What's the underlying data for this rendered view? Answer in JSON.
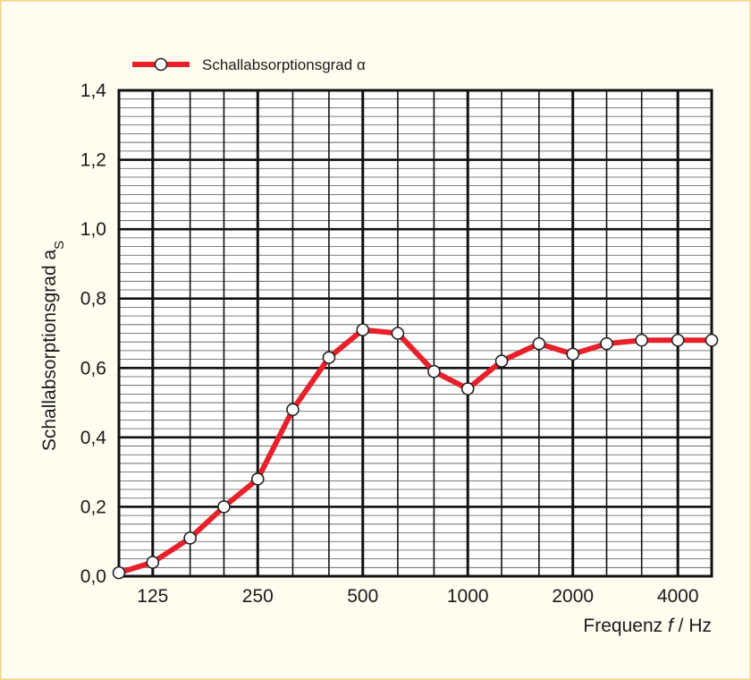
{
  "colors": {
    "background": "#fffdf0",
    "frame_border": "#f2d38a",
    "series_line": "#e8202a",
    "marker_fill": "#ffffff",
    "marker_stroke": "#222222",
    "grid_major": "#111111",
    "grid_minor": "#555555"
  },
  "chart_data": {
    "type": "line",
    "title": "",
    "xlabel_prefix": "Frequenz ",
    "xlabel_var": "f",
    "xlabel_suffix": " / Hz",
    "ylabel_main": "Schallabsorptionsgrad a",
    "ylabel_sub": "S",
    "x_scale": "log",
    "x_ticks": [
      125,
      250,
      500,
      1000,
      2000,
      4000
    ],
    "x_tick_labels": [
      "125",
      "250",
      "500",
      "1000",
      "2000",
      "4000"
    ],
    "xlim": [
      100,
      5000
    ],
    "ylim": [
      0,
      1.4
    ],
    "y_ticks": [
      0.0,
      0.2,
      0.4,
      0.6,
      0.8,
      1.0,
      1.2,
      1.4
    ],
    "y_tick_labels": [
      "0,0",
      "0,2",
      "0,4",
      "0,6",
      "0,8",
      "1,0",
      "1,2",
      "1,4"
    ],
    "grid": true,
    "legend_position": "top-left",
    "series": [
      {
        "name": "Schallabsorptionsgrad α",
        "x": [
          100,
          125,
          160,
          200,
          250,
          315,
          400,
          500,
          630,
          800,
          1000,
          1250,
          1600,
          2000,
          2500,
          3150,
          4000,
          5000
        ],
        "values": [
          0.01,
          0.04,
          0.11,
          0.2,
          0.28,
          0.48,
          0.63,
          0.71,
          0.7,
          0.59,
          0.54,
          0.62,
          0.67,
          0.64,
          0.67,
          0.68,
          0.68,
          0.68
        ]
      }
    ]
  }
}
